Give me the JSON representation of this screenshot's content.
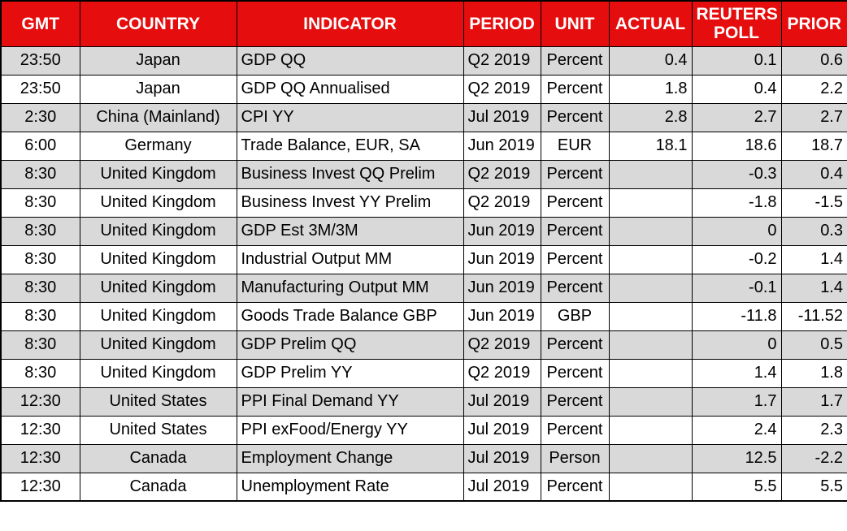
{
  "colors": {
    "header_bg": "#e50d0d",
    "header_text": "#ffffff",
    "row_bg": "#ffffff",
    "row_alt_bg": "#d9d9d9",
    "border": "#000000",
    "cell_text": "#000000"
  },
  "table": {
    "columns": [
      {
        "key": "gmt",
        "label": "GMT"
      },
      {
        "key": "country",
        "label": "COUNTRY"
      },
      {
        "key": "indicator",
        "label": "INDICATOR"
      },
      {
        "key": "period",
        "label": "PERIOD"
      },
      {
        "key": "unit",
        "label": "UNIT"
      },
      {
        "key": "actual",
        "label": "ACTUAL"
      },
      {
        "key": "poll",
        "label": "REUTERS POLL"
      },
      {
        "key": "prior",
        "label": "PRIOR"
      }
    ],
    "rows": [
      {
        "gmt": "23:50",
        "country": "Japan",
        "indicator": "GDP QQ",
        "period": "Q2 2019",
        "unit": "Percent",
        "actual": "0.4",
        "poll": "0.1",
        "prior": "0.6"
      },
      {
        "gmt": "23:50",
        "country": "Japan",
        "indicator": "GDP QQ Annualised",
        "period": "Q2 2019",
        "unit": "Percent",
        "actual": "1.8",
        "poll": "0.4",
        "prior": "2.2"
      },
      {
        "gmt": "2:30",
        "country": "China (Mainland)",
        "indicator": "CPI YY",
        "period": "Jul 2019",
        "unit": "Percent",
        "actual": "2.8",
        "poll": "2.7",
        "prior": "2.7"
      },
      {
        "gmt": "6:00",
        "country": "Germany",
        "indicator": "Trade Balance, EUR, SA",
        "period": "Jun 2019",
        "unit": "EUR",
        "actual": "18.1",
        "poll": "18.6",
        "prior": "18.7"
      },
      {
        "gmt": "8:30",
        "country": "United Kingdom",
        "indicator": "Business Invest QQ Prelim",
        "period": "Q2 2019",
        "unit": "Percent",
        "actual": "",
        "poll": "-0.3",
        "prior": "0.4"
      },
      {
        "gmt": "8:30",
        "country": "United Kingdom",
        "indicator": "Business Invest YY Prelim",
        "period": "Q2 2019",
        "unit": "Percent",
        "actual": "",
        "poll": "-1.8",
        "prior": "-1.5"
      },
      {
        "gmt": "8:30",
        "country": "United Kingdom",
        "indicator": "GDP Est 3M/3M",
        "period": "Jun 2019",
        "unit": "Percent",
        "actual": "",
        "poll": "0",
        "prior": "0.3"
      },
      {
        "gmt": "8:30",
        "country": "United Kingdom",
        "indicator": "Industrial Output MM",
        "period": "Jun 2019",
        "unit": "Percent",
        "actual": "",
        "poll": "-0.2",
        "prior": "1.4"
      },
      {
        "gmt": "8:30",
        "country": "United Kingdom",
        "indicator": "Manufacturing Output MM",
        "period": "Jun 2019",
        "unit": "Percent",
        "actual": "",
        "poll": "-0.1",
        "prior": "1.4"
      },
      {
        "gmt": "8:30",
        "country": "United Kingdom",
        "indicator": "Goods Trade Balance GBP",
        "period": "Jun 2019",
        "unit": "GBP",
        "actual": "",
        "poll": "-11.8",
        "prior": "-11.52"
      },
      {
        "gmt": "8:30",
        "country": "United Kingdom",
        "indicator": "GDP Prelim QQ",
        "period": "Q2 2019",
        "unit": "Percent",
        "actual": "",
        "poll": "0",
        "prior": "0.5"
      },
      {
        "gmt": "8:30",
        "country": "United Kingdom",
        "indicator": "GDP Prelim YY",
        "period": "Q2 2019",
        "unit": "Percent",
        "actual": "",
        "poll": "1.4",
        "prior": "1.8"
      },
      {
        "gmt": "12:30",
        "country": "United States",
        "indicator": "PPI Final Demand YY",
        "period": "Jul 2019",
        "unit": "Percent",
        "actual": "",
        "poll": "1.7",
        "prior": "1.7"
      },
      {
        "gmt": "12:30",
        "country": "United States",
        "indicator": "PPI exFood/Energy YY",
        "period": "Jul 2019",
        "unit": "Percent",
        "actual": "",
        "poll": "2.4",
        "prior": "2.3"
      },
      {
        "gmt": "12:30",
        "country": "Canada",
        "indicator": "Employment Change",
        "period": "Jul 2019",
        "unit": "Person",
        "actual": "",
        "poll": "12.5",
        "prior": "-2.2"
      },
      {
        "gmt": "12:30",
        "country": "Canada",
        "indicator": "Unemployment Rate",
        "period": "Jul 2019",
        "unit": "Percent",
        "actual": "",
        "poll": "5.5",
        "prior": "5.5"
      }
    ]
  }
}
